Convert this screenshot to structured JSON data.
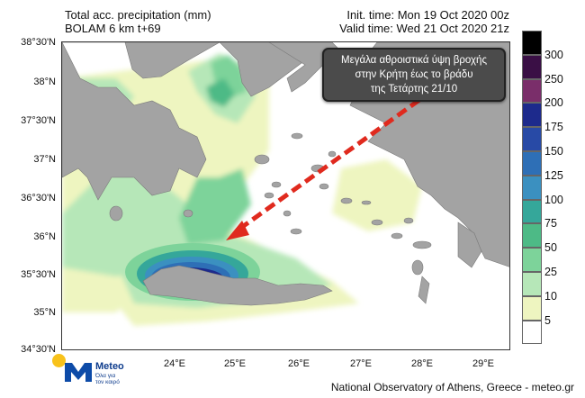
{
  "header": {
    "left_line1": "Total acc. precipitation (mm)",
    "left_line2": "BOLAM 6 km t+69",
    "right_line1": "Init. time: Mon 19 Oct 2020 00z",
    "right_line2": "Valid time: Wed 21 Oct 2020 21z"
  },
  "map": {
    "lat_labels": [
      "38°30'N",
      "38°N",
      "37°30'N",
      "37°N",
      "36°30'N",
      "36°N",
      "35°30'N",
      "35°N",
      "34°30'N"
    ],
    "lat_values": [
      38.5,
      38.0,
      37.5,
      37.0,
      36.5,
      36.0,
      35.5,
      35.0,
      34.5
    ],
    "lon_labels": [
      "24°E",
      "25°E",
      "26°E",
      "27°E",
      "28°E",
      "29°E"
    ],
    "lon_values": [
      24,
      25,
      26,
      27,
      28,
      29
    ],
    "land_color": "#a3a3a3",
    "sea_color": "#ffffff",
    "arrow_color": "#e02a1e"
  },
  "annotation": {
    "line1": "Μεγάλα αθροιστικά  ύψη βροχής",
    "line2": "στην Κρήτη έως το βράδυ",
    "line3": "της Τετάρτης 21/10"
  },
  "legend": {
    "labels": [
      "300",
      "250",
      "200",
      "175",
      "150",
      "125",
      "100",
      "75",
      "50",
      "25",
      "10",
      "5"
    ],
    "colors": [
      "#000000",
      "#3a0f45",
      "#7a2e6a",
      "#1d2a8c",
      "#284aa6",
      "#2e6fb6",
      "#3b90c0",
      "#35a79a",
      "#4dba86",
      "#7dd39a",
      "#b6e7b8",
      "#eef5c0",
      "#ffffff"
    ]
  },
  "logo": {
    "name": "Meteo",
    "tagline_1": "Όλα για",
    "tagline_2": "τον καιρό"
  },
  "footer": {
    "credit": "National Observatory of Athens, Greece - meteo.gr"
  }
}
